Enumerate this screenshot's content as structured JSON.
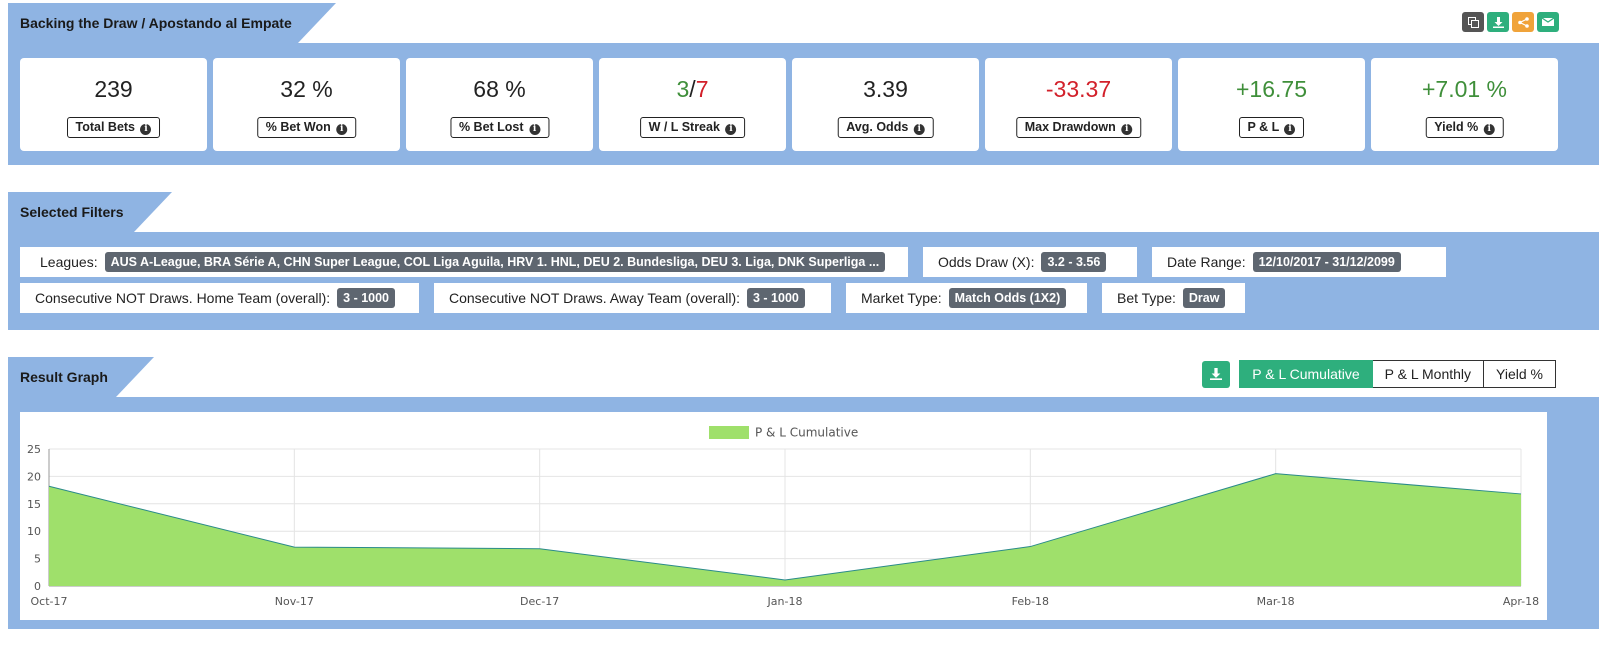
{
  "header": {
    "title": "Backing the Draw / Apostando al Empate",
    "icons": [
      {
        "name": "copy-icon",
        "color": "#555555"
      },
      {
        "name": "download-icon",
        "color": "#2eaf7d"
      },
      {
        "name": "share-icon",
        "color": "#f0a33a"
      },
      {
        "name": "envelope-icon",
        "color": "#2eaf7d"
      }
    ]
  },
  "stats": {
    "total_bets": {
      "value": "239",
      "label": "Total Bets"
    },
    "bet_won": {
      "value": "32 %",
      "label": "% Bet Won"
    },
    "bet_lost": {
      "value": "68 %",
      "label": "% Bet Lost"
    },
    "streak": {
      "win": "3",
      "sep": "/",
      "loss": "7",
      "label": "W / L Streak"
    },
    "avg_odds": {
      "value": "3.39",
      "label": "Avg. Odds"
    },
    "max_drawdown": {
      "value": "-33.37",
      "label": "Max Drawdown"
    },
    "pl": {
      "value": "+16.75",
      "label": "P & L"
    },
    "yield": {
      "value": "+7.01 %",
      "label": "Yield %"
    }
  },
  "filters": {
    "title": "Selected Filters",
    "leagues": {
      "key": "Leagues:",
      "value": "AUS A-League, BRA Série A, CHN Super League, COL Liga Aguila, HRV 1. HNL, DEU 2. Bundesliga, DEU 3. Liga, DNK Superliga ..."
    },
    "odds_draw": {
      "key": "Odds Draw (X):",
      "value": "3.2 - 3.56"
    },
    "date_range": {
      "key": "Date Range:",
      "value": "12/10/2017 - 31/12/2099"
    },
    "home_team": {
      "key": "Consecutive NOT Draws. Home Team (overall):",
      "value": "3 - 1000"
    },
    "away_team": {
      "key": "Consecutive NOT Draws. Away Team (overall):",
      "value": "3 - 1000"
    },
    "market_type": {
      "key": "Market Type:",
      "value": "Match Odds (1X2)"
    },
    "bet_type": {
      "key": "Bet Type:",
      "value": "Draw"
    }
  },
  "graph": {
    "title": "Result Graph",
    "buttons": {
      "cumulative": "P & L Cumulative",
      "monthly": "P & L Monthly",
      "yield": "Yield %"
    },
    "active": "cumulative"
  },
  "chart_data": {
    "type": "area",
    "categories": [
      "Oct-17",
      "Nov-17",
      "Dec-17",
      "Jan-18",
      "Feb-18",
      "Mar-18",
      "Apr-18"
    ],
    "series": [
      {
        "name": "P & L Cumulative",
        "values": [
          18.2,
          7.1,
          6.8,
          1.1,
          7.2,
          20.5,
          16.8
        ],
        "color": "#9fe06b",
        "line": "#2a8a8a"
      }
    ],
    "ylim": [
      0,
      25
    ],
    "yticks": [
      0,
      5,
      10,
      15,
      20,
      25
    ],
    "grid": true,
    "legend": "top-center"
  }
}
